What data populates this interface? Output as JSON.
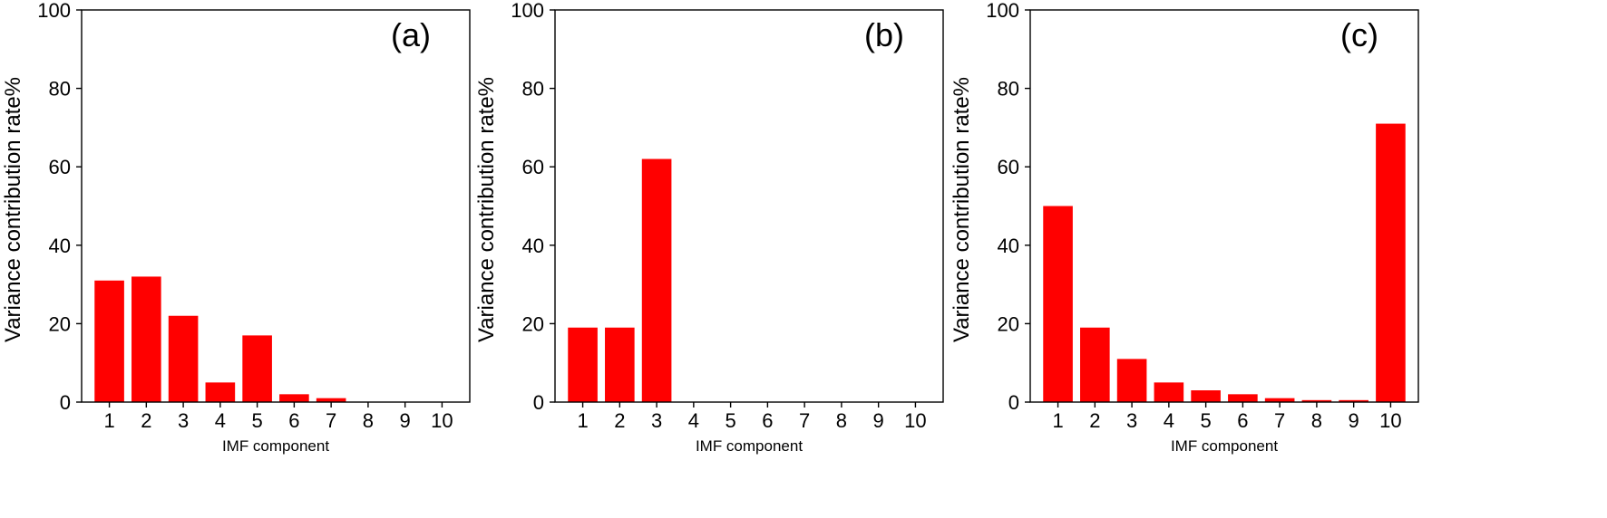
{
  "chart_data": [
    {
      "type": "bar",
      "panel_label": "(a)",
      "categories": [
        "1",
        "2",
        "3",
        "4",
        "5",
        "6",
        "7",
        "8",
        "9",
        "10"
      ],
      "values": [
        31,
        32,
        22,
        5,
        17,
        2,
        1,
        0,
        0,
        0
      ],
      "xlabel": "IMF component",
      "ylabel": "Variance contribution rate%",
      "ylim": [
        0,
        100
      ],
      "yticks": [
        "0",
        "20",
        "40",
        "60",
        "80",
        "100"
      ],
      "bar_color": "#ff0000",
      "grid": false
    },
    {
      "type": "bar",
      "panel_label": "(b)",
      "categories": [
        "1",
        "2",
        "3",
        "4",
        "5",
        "6",
        "7",
        "8",
        "9",
        "10"
      ],
      "values": [
        19,
        19,
        62,
        0,
        0,
        0,
        0,
        0,
        0,
        0
      ],
      "xlabel": "IMF component",
      "ylabel": "Variance contribution rate%",
      "ylim": [
        0,
        100
      ],
      "yticks": [
        "0",
        "20",
        "40",
        "60",
        "80",
        "100"
      ],
      "bar_color": "#ff0000",
      "grid": false
    },
    {
      "type": "bar",
      "panel_label": "(c)",
      "categories": [
        "1",
        "2",
        "3",
        "4",
        "5",
        "6",
        "7",
        "8",
        "9",
        "10"
      ],
      "values": [
        50,
        19,
        11,
        5,
        3,
        2,
        1,
        0.5,
        0.5,
        71
      ],
      "xlabel": "IMF component",
      "ylabel": "Variance contribution rate%",
      "ylim": [
        0,
        100
      ],
      "yticks": [
        "0",
        "20",
        "40",
        "60",
        "80",
        "100"
      ],
      "bar_color": "#ff0000",
      "grid": false
    }
  ]
}
